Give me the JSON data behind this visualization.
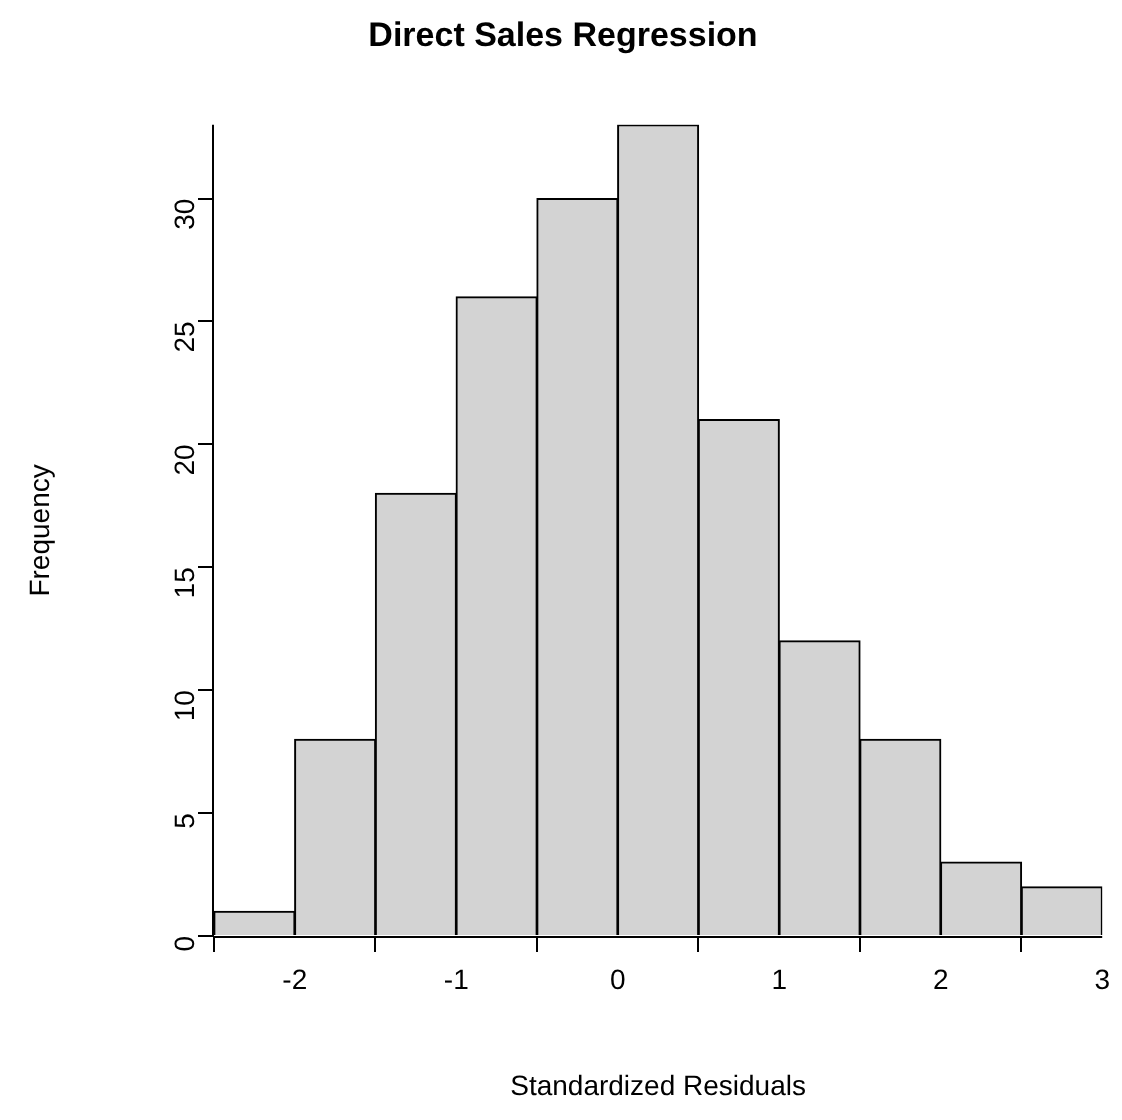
{
  "chart_data": {
    "type": "histogram",
    "title": "Direct Sales Regression",
    "xlabel": "Standardized Residuals",
    "ylabel": "Frequency",
    "bins": [
      -2.5,
      -2,
      -1.5,
      -1,
      -0.5,
      0,
      0.5,
      1,
      1.5,
      2,
      2.5,
      3
    ],
    "values": [
      1,
      8,
      18,
      26,
      30,
      33,
      21,
      12,
      8,
      3,
      2
    ],
    "color": "#d3d3d3",
    "xlim": [
      -2.5,
      3
    ],
    "xticks": [
      -2,
      -1,
      0,
      1,
      2,
      3
    ],
    "ylim": [
      0,
      33
    ],
    "yticks": [
      0,
      5,
      10,
      15,
      20,
      25,
      30
    ],
    "grid": false,
    "legend": false
  }
}
